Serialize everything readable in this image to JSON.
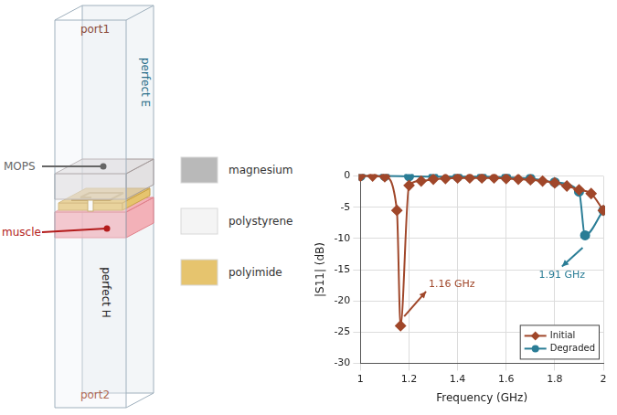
{
  "diagram": {
    "labels": {
      "top_port": "port1",
      "bottom_port": "port2",
      "upper_boundary": "perfect E",
      "lower_boundary": "perfect H",
      "slab": "MOPS",
      "tissue": "muscle"
    },
    "materials": [
      {
        "name": "magnesium",
        "color": "#b9b9b9"
      },
      {
        "name": "polystyrene",
        "color": "#f4f4f4"
      },
      {
        "name": "polyimide",
        "color": "#e6c46e"
      }
    ]
  },
  "chart_data": {
    "type": "line",
    "x_label": "Frequency (GHz)",
    "y_label": "|S11| (dB)",
    "xlim": [
      1,
      2
    ],
    "xticks": [
      1,
      1.2,
      1.4,
      1.6,
      1.8,
      2
    ],
    "ylim": [
      -30,
      0
    ],
    "yticks": [
      -30,
      -25,
      -20,
      -15,
      -10,
      -5,
      0
    ],
    "grid": true,
    "legend": "lower right",
    "series": [
      {
        "name": "Initial",
        "color": "#a0472a",
        "marker": "diamond",
        "x": [
          1.0,
          1.05,
          1.1,
          1.15,
          1.165,
          1.2,
          1.25,
          1.3,
          1.35,
          1.4,
          1.45,
          1.5,
          1.55,
          1.6,
          1.65,
          1.7,
          1.75,
          1.8,
          1.85,
          1.9,
          1.95,
          2.0
        ],
        "values": [
          0,
          0,
          -0.1,
          -5.5,
          -24,
          -1.5,
          -0.8,
          -0.5,
          -0.4,
          -0.3,
          -0.3,
          -0.3,
          -0.3,
          -0.4,
          -0.5,
          -0.6,
          -0.8,
          -1.1,
          -1.6,
          -2.2,
          -2.8,
          -5.5
        ]
      },
      {
        "name": "Degraded",
        "color": "#2a7d96",
        "marker": "circle",
        "x": [
          1.0,
          1.1,
          1.2,
          1.3,
          1.4,
          1.5,
          1.6,
          1.7,
          1.8,
          1.9,
          1.925,
          2.0
        ],
        "values": [
          0,
          0,
          -0.05,
          -0.1,
          -0.1,
          -0.1,
          -0.2,
          -0.4,
          -1.0,
          -2.5,
          -9.5,
          -5.5
        ]
      }
    ],
    "annotations": [
      {
        "text": "1.16 GHz",
        "x": 1.27,
        "y": -18.5,
        "point": [
          1.18,
          -22.5
        ],
        "color": "#a0472a"
      },
      {
        "text": "1.91 GHz",
        "x": 1.83,
        "y": -14.5,
        "point": [
          1.915,
          -11.5
        ],
        "color": "#2a7d96"
      }
    ]
  }
}
